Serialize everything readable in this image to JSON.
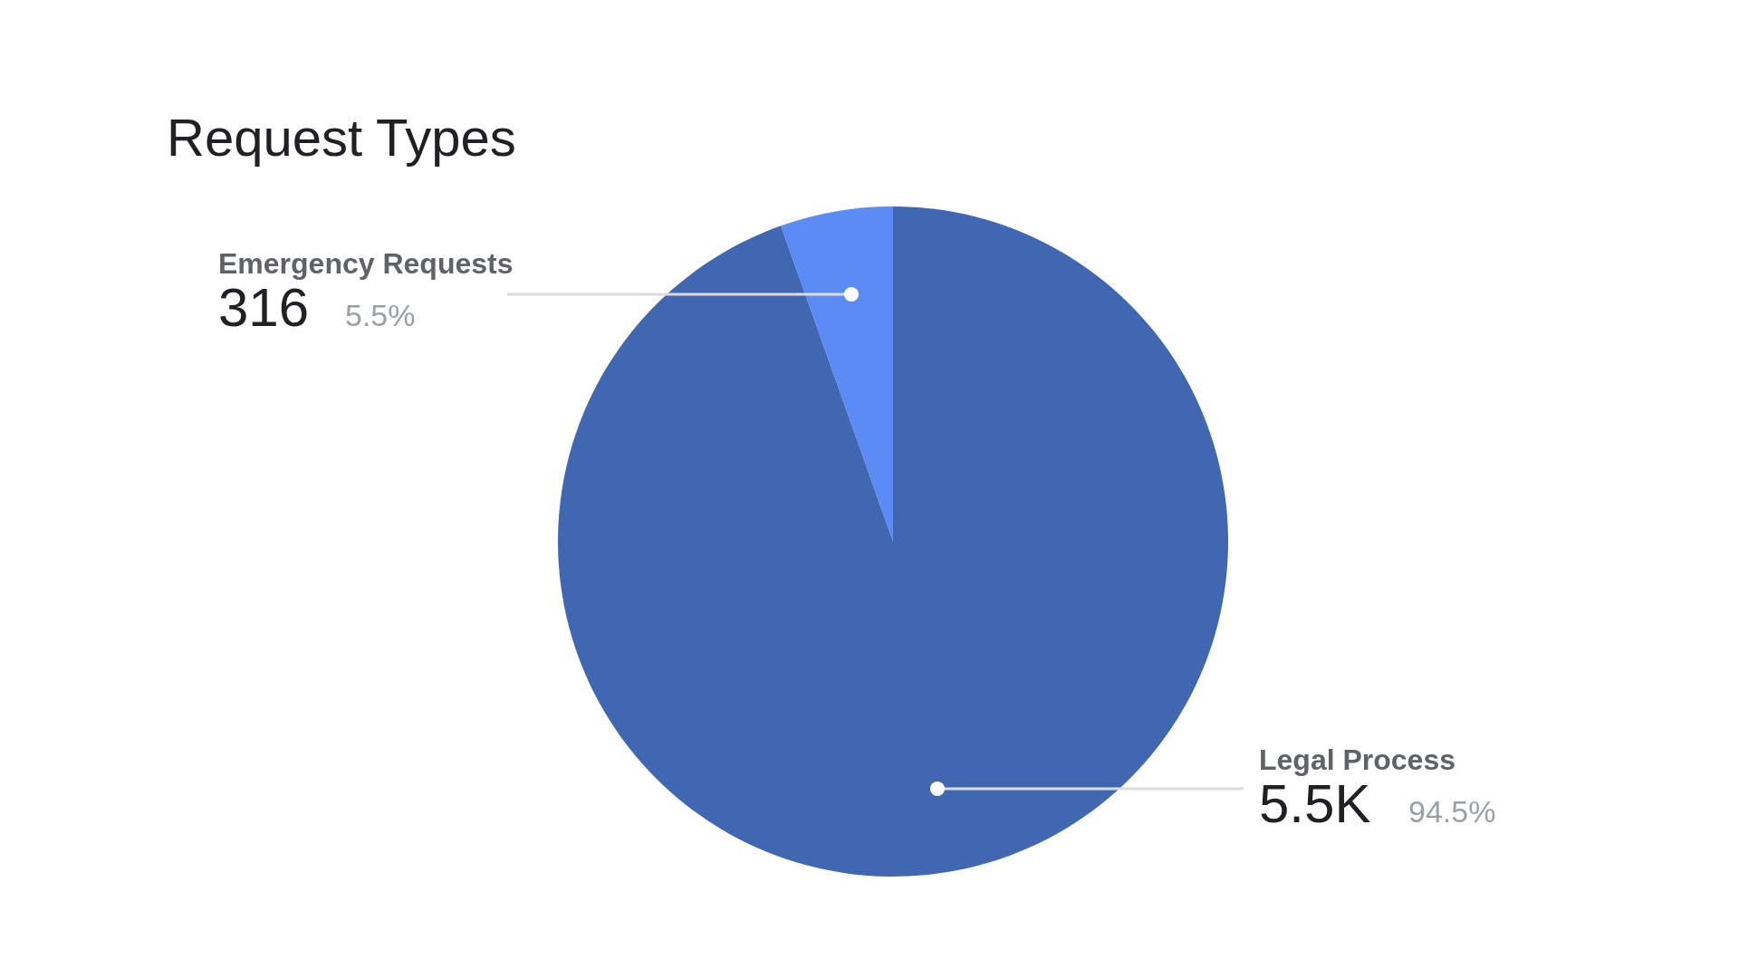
{
  "chart_data": {
    "type": "pie",
    "title": "Request Types",
    "categories": [
      "Emergency Requests",
      "Legal Process"
    ],
    "values": [
      316,
      5500
    ],
    "value_labels": [
      "316",
      "5.5K"
    ],
    "colors": [
      "#5b8cf6",
      "#4267b2"
    ],
    "annotations": [
      "5.5%",
      "94.5%"
    ],
    "legend": false
  }
}
